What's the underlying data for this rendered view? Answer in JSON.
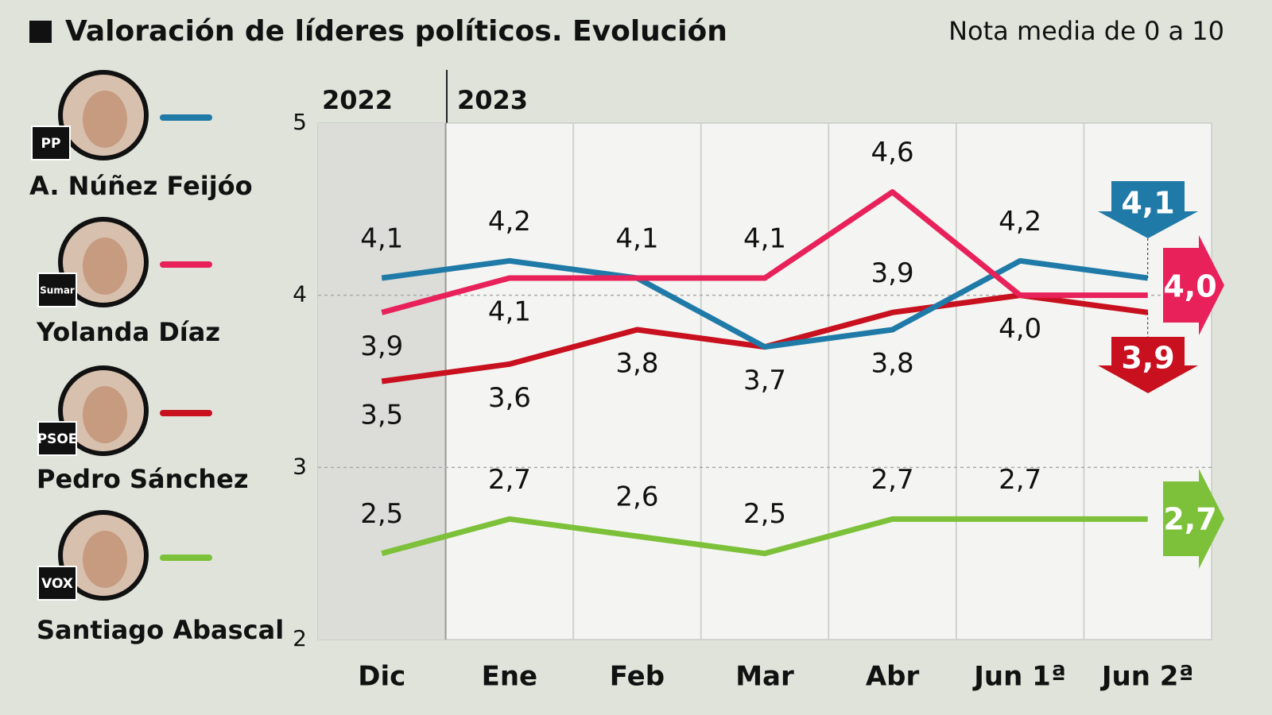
{
  "chart_data": {
    "type": "line",
    "title": "Valoración de líderes políticos. Evolución",
    "subtitle": "Nota media de 0 a 10",
    "periods": [
      "2022",
      "2023"
    ],
    "categories": [
      "Dic",
      "Ene",
      "Feb",
      "Mar",
      "Abr",
      "Jun 1ª",
      "Jun 2ª"
    ],
    "ylim": [
      2,
      5
    ],
    "yticks": [
      2,
      3,
      4,
      5
    ],
    "grid": true,
    "series": [
      {
        "name": "A. Núñez Feijóo",
        "party": "PP",
        "color": "#1f7aa8",
        "values": [
          4.1,
          4.2,
          4.1,
          3.7,
          3.8,
          4.2,
          4.1
        ],
        "value_labels": [
          "4,1",
          "4,2",
          "4,1",
          null,
          "3,8",
          "4,2",
          "4,1"
        ]
      },
      {
        "name": "Yolanda Díaz",
        "party": "Sumar",
        "color": "#e8215a",
        "values": [
          3.9,
          4.1,
          4.1,
          4.1,
          4.6,
          4.0,
          4.0
        ],
        "value_labels": [
          "3,9",
          "4,1",
          null,
          "4,1",
          "4,6",
          null,
          "4,0"
        ]
      },
      {
        "name": "Pedro Sánchez",
        "party": "PSOE",
        "color": "#c8101e",
        "values": [
          3.5,
          3.6,
          3.8,
          3.7,
          3.9,
          4.0,
          3.9
        ],
        "value_labels": [
          "3,5",
          "3,6",
          "3,8",
          "3,7",
          "3,9",
          "4,0",
          "3,9"
        ]
      },
      {
        "name": "Santiago Abascal",
        "party": "VOX",
        "color": "#7dc13a",
        "values": [
          2.5,
          2.7,
          2.6,
          2.5,
          2.7,
          2.7,
          2.7
        ],
        "value_labels": [
          "2,5",
          "2,7",
          "2,6",
          "2,5",
          "2,7",
          "2,7",
          "2,7"
        ]
      }
    ]
  }
}
